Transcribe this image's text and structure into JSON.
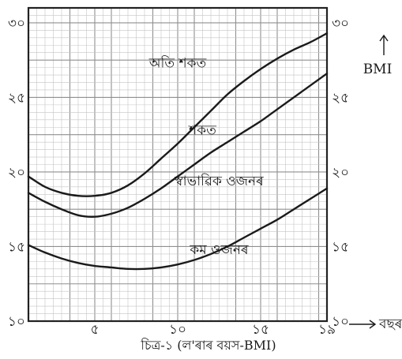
{
  "chart_data": {
    "type": "line",
    "caption": "চিত্ৰ-১ (ল'ৰাৰ বয়স-BMI)",
    "xlabel": "বছৰ",
    "ylabel": "BMI",
    "xlim": [
      1,
      19
    ],
    "ylim": [
      10,
      31
    ],
    "x_ticks": [
      {
        "value": 5,
        "label": "৫"
      },
      {
        "value": 10,
        "label": "১০"
      },
      {
        "value": 15,
        "label": "১৫"
      },
      {
        "value": 19,
        "label": "১৯"
      }
    ],
    "y_ticks": [
      {
        "value": 10,
        "label": "১০"
      },
      {
        "value": 15,
        "label": "১৫"
      },
      {
        "value": 20,
        "label": "২০"
      },
      {
        "value": 25,
        "label": "২৫"
      },
      {
        "value": 30,
        "label": "৩০"
      }
    ],
    "grid": true,
    "series": [
      {
        "x": [
          1,
          2,
          3,
          4,
          5,
          6,
          7,
          8,
          9,
          10,
          11,
          12,
          13,
          14,
          15,
          16,
          17,
          18,
          19
        ],
        "y": [
          15.1,
          14.6,
          14.2,
          13.9,
          13.7,
          13.6,
          13.5,
          13.5,
          13.6,
          13.8,
          14.1,
          14.5,
          15.0,
          15.6,
          16.2,
          16.8,
          17.5,
          18.2,
          18.9
        ]
      },
      {
        "x": [
          1,
          2,
          3,
          4,
          5,
          6,
          7,
          8,
          9,
          10,
          11,
          12,
          13,
          14,
          15,
          16,
          17,
          18,
          19
        ],
        "y": [
          18.6,
          18.0,
          17.5,
          17.1,
          17.0,
          17.2,
          17.6,
          18.2,
          18.9,
          19.7,
          20.5,
          21.3,
          22.0,
          22.7,
          23.4,
          24.2,
          25.0,
          25.8,
          26.6
        ]
      },
      {
        "x": [
          1,
          2,
          3,
          4,
          5,
          6,
          7,
          8,
          9,
          10,
          11,
          12,
          13,
          14,
          15,
          16,
          17,
          18,
          19
        ],
        "y": [
          19.7,
          19.0,
          18.6,
          18.4,
          18.4,
          18.6,
          19.1,
          19.9,
          20.9,
          21.9,
          23.0,
          24.1,
          25.2,
          26.1,
          26.9,
          27.6,
          28.2,
          28.7,
          29.3
        ]
      }
    ],
    "regions": [
      {
        "label": "অতি শকত",
        "x": 10,
        "y": 27.0
      },
      {
        "label": "শকত",
        "x": 11.5,
        "y": 22.5
      },
      {
        "label": "স্বাভাৱিক ওজনৰ",
        "x": 12.5,
        "y": 19.1
      },
      {
        "label": "কম ওজনৰ",
        "x": 12.5,
        "y": 14.5
      }
    ]
  }
}
